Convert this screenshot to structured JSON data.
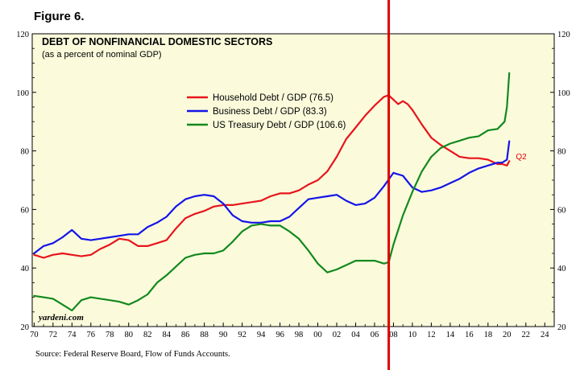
{
  "figure_label": "Figure 6.",
  "source_note": "Source: Federal Reserve Board, Flow of Funds Accounts.",
  "watermark": "yardeni.com",
  "chart_data": {
    "type": "line",
    "title": "DEBT OF NONFINANCIAL DOMESTIC SECTORS",
    "subtitle": "(as a percent of nominal GDP)",
    "xlabel": "",
    "ylabel": "",
    "xlim": [
      1969.8,
      2025
    ],
    "ylim": [
      20,
      120
    ],
    "x_ticks": [
      1970,
      1972,
      1974,
      1976,
      1978,
      1980,
      1982,
      1984,
      1986,
      1988,
      1990,
      1992,
      1994,
      1996,
      1998,
      2000,
      2002,
      2004,
      2006,
      2008,
      2010,
      2012,
      2014,
      2016,
      2018,
      2020,
      2022,
      2024
    ],
    "x_tick_labels": [
      "70",
      "72",
      "74",
      "76",
      "78",
      "80",
      "82",
      "84",
      "86",
      "88",
      "90",
      "92",
      "94",
      "96",
      "98",
      "00",
      "02",
      "04",
      "06",
      "08",
      "10",
      "12",
      "14",
      "16",
      "18",
      "20",
      "22",
      "24"
    ],
    "y_ticks": [
      20,
      40,
      60,
      80,
      100,
      120
    ],
    "y_tick_labels": [
      "20",
      "40",
      "60",
      "80",
      "100",
      "120"
    ],
    "grid": false,
    "legend_position": "upper-center",
    "background": "#fbfbdc",
    "vertical_marker": {
      "x": 2007.5,
      "color": "#e00000"
    },
    "annotations": [
      {
        "text": "Q2",
        "x": 2020.6,
        "y": 76,
        "color": "#e00000"
      }
    ],
    "series": [
      {
        "name": "Household Debt / GDP (76.5)",
        "color": "#e8141c",
        "x": [
          1970,
          1971,
          1972,
          1973,
          1974,
          1975,
          1976,
          1977,
          1978,
          1979,
          1980,
          1981,
          1982,
          1983,
          1984,
          1985,
          1986,
          1987,
          1988,
          1989,
          1990,
          1991,
          1992,
          1993,
          1994,
          1995,
          1996,
          1997,
          1998,
          1999,
          2000,
          2001,
          2002,
          2003,
          2004,
          2005,
          2006,
          2007,
          2007.5,
          2008,
          2008.5,
          2009,
          2009.5,
          2010,
          2011,
          2012,
          2013,
          2014,
          2015,
          2016,
          2017,
          2018,
          2019,
          2019.5,
          2020,
          2020.25
        ],
        "values": [
          44.5,
          43.5,
          44.5,
          45,
          44.5,
          44,
          44.5,
          46.5,
          48,
          50,
          49.5,
          47.5,
          47.5,
          48.5,
          49.5,
          53.5,
          57,
          58.5,
          59.5,
          61,
          61.5,
          61.5,
          62,
          62.5,
          63,
          64.5,
          65.5,
          65.5,
          66.5,
          68.5,
          70,
          73,
          78,
          84,
          88,
          92,
          95.5,
          98.5,
          99,
          97.5,
          96,
          97,
          96,
          94,
          89,
          84.5,
          82,
          80,
          78,
          77.5,
          77.5,
          77,
          75.5,
          75.5,
          75,
          76.5
        ]
      },
      {
        "name": "Business Debt / GDP (83.3)",
        "color": "#1414e8",
        "x": [
          1970,
          1971,
          1972,
          1973,
          1974,
          1975,
          1976,
          1977,
          1978,
          1979,
          1980,
          1981,
          1982,
          1983,
          1984,
          1985,
          1986,
          1987,
          1988,
          1989,
          1990,
          1991,
          1992,
          1993,
          1994,
          1995,
          1996,
          1997,
          1998,
          1999,
          2000,
          2001,
          2002,
          2003,
          2004,
          2005,
          2006,
          2007,
          2008,
          2009,
          2010,
          2011,
          2012,
          2013,
          2014,
          2015,
          2016,
          2017,
          2018,
          2019,
          2019.5,
          2020,
          2020.25
        ],
        "values": [
          45,
          47.5,
          48.5,
          50.5,
          53,
          50,
          49.5,
          50,
          50.5,
          51,
          51.5,
          51.5,
          54,
          55.5,
          57.5,
          61,
          63.5,
          64.5,
          65,
          64.5,
          62,
          58,
          56,
          55.5,
          55.5,
          56,
          56,
          57.5,
          60.5,
          63.5,
          64,
          64.5,
          65,
          63,
          61.5,
          62,
          64,
          68,
          72.5,
          71.5,
          67.5,
          66,
          66.5,
          67.5,
          69,
          70.5,
          72.5,
          74,
          75,
          76,
          76,
          77,
          83.3
        ]
      },
      {
        "name": "US Treasury Debt / GDP (106.6)",
        "color": "#13891e",
        "x": [
          1970,
          1971,
          1972,
          1973,
          1974,
          1975,
          1976,
          1977,
          1978,
          1979,
          1980,
          1981,
          1982,
          1983,
          1984,
          1985,
          1986,
          1987,
          1988,
          1989,
          1990,
          1991,
          1992,
          1993,
          1994,
          1995,
          1996,
          1997,
          1998,
          1999,
          2000,
          2001,
          2002,
          2003,
          2004,
          2005,
          2006,
          2007,
          2007.5,
          2008,
          2009,
          2010,
          2011,
          2012,
          2013,
          2014,
          2015,
          2016,
          2017,
          2018,
          2019,
          2019.75,
          2020,
          2020.25
        ],
        "values": [
          30.5,
          30,
          29.5,
          27.5,
          25.5,
          29,
          30,
          29.5,
          29,
          28.5,
          27.5,
          29,
          31,
          35,
          37.5,
          40.5,
          43.5,
          44.5,
          45,
          45,
          46,
          49,
          52.5,
          54.5,
          55,
          54.5,
          54.5,
          52.5,
          50,
          46,
          41.5,
          38.5,
          39.5,
          41,
          42.5,
          42.5,
          42.5,
          41.5,
          42,
          48,
          58,
          66,
          73,
          78,
          81,
          82.5,
          83.5,
          84.5,
          85,
          87,
          87.5,
          90,
          95,
          106.6
        ]
      }
    ]
  }
}
